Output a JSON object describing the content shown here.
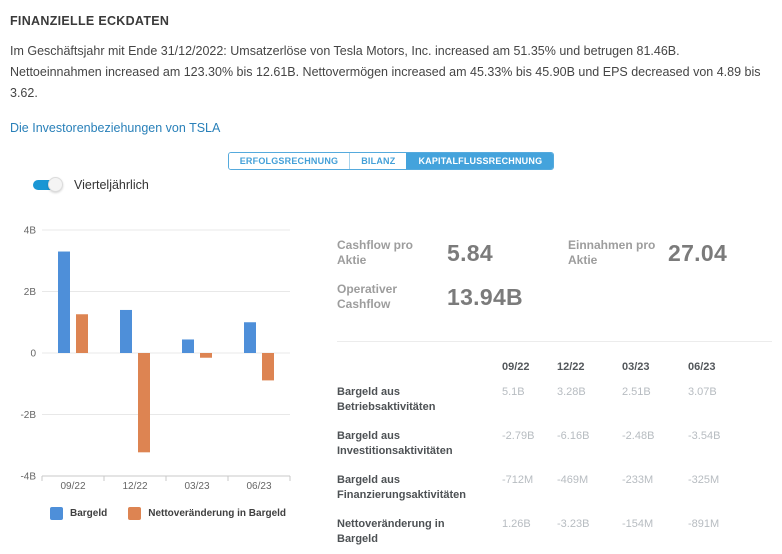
{
  "header": {
    "title": "FINANZIELLE ECKDATEN",
    "summary": "Im Geschäftsjahr mit Ende 31/12/2022: Umsatzerlöse von Tesla Motors, Inc. increased am 51.35% und betrugen 81.46B. Nettoeinnahmen increased am 123.30% bis 12.61B. Nettovermögen increased am 45.33% bis 45.90B und EPS decreased von 4.89 bis 3.62.",
    "link_label": "Die Investorenbeziehungen von TSLA"
  },
  "tabs": {
    "items": [
      {
        "label": "ERFOLGSRECHNUNG",
        "active": false
      },
      {
        "label": "BILANZ",
        "active": false
      },
      {
        "label": "KAPITALFLUSSRECHNUNG",
        "active": true
      }
    ]
  },
  "controls": {
    "quarterly_toggle": {
      "label": "Vierteljährlich",
      "state": "on"
    }
  },
  "kpis": [
    {
      "label": "Cashflow pro Aktie",
      "value": "5.84"
    },
    {
      "label": "Einnahmen pro Aktie",
      "value": "27.04"
    },
    {
      "label": "Operativer Cashflow",
      "value": "13.94B"
    }
  ],
  "table": {
    "columns": [
      "09/22",
      "12/22",
      "03/23",
      "06/23"
    ],
    "rows": [
      {
        "label": "Bargeld aus Betriebsaktivitäten",
        "values": [
          "5.1B",
          "3.28B",
          "2.51B",
          "3.07B"
        ]
      },
      {
        "label": "Bargeld aus Investitionsaktivitäten",
        "values": [
          "-2.79B",
          "-6.16B",
          "-2.48B",
          "-3.54B"
        ]
      },
      {
        "label": "Bargeld aus Finanzierungsaktivitäten",
        "values": [
          "-712M",
          "-469M",
          "-233M",
          "-325M"
        ]
      },
      {
        "label": "Nettoveränderung in Bargeld",
        "values": [
          "1.26B",
          "-3.23B",
          "-154M",
          "-891M"
        ]
      }
    ]
  },
  "chart_data": {
    "type": "bar",
    "categories": [
      "09/22",
      "12/22",
      "03/23",
      "06/23"
    ],
    "series": [
      {
        "name": "Bargeld",
        "color": "#4e8fd9",
        "values": [
          3.3,
          1.4,
          0.44,
          1.0
        ]
      },
      {
        "name": "Nettoveränderung in Bargeld",
        "color": "#dd8452",
        "values": [
          1.26,
          -3.23,
          -0.154,
          -0.891
        ]
      }
    ],
    "title": "",
    "xlabel": "",
    "ylabel": "",
    "unit": "B",
    "ylim": [
      -4,
      4
    ],
    "yticks": [
      {
        "value": 4,
        "label": "4B"
      },
      {
        "value": 2,
        "label": "2B"
      },
      {
        "value": 0,
        "label": "0"
      },
      {
        "value": -2,
        "label": "-2B"
      },
      {
        "value": -4,
        "label": "-4B"
      }
    ],
    "grid": true,
    "legend_position": "bottom"
  },
  "colors": {
    "accent_blue": "#44a3dc",
    "link_blue": "#2980b9",
    "toggle_blue": "#1a96d4",
    "bar_blue": "#4e8fd9",
    "bar_orange": "#dd8452"
  }
}
